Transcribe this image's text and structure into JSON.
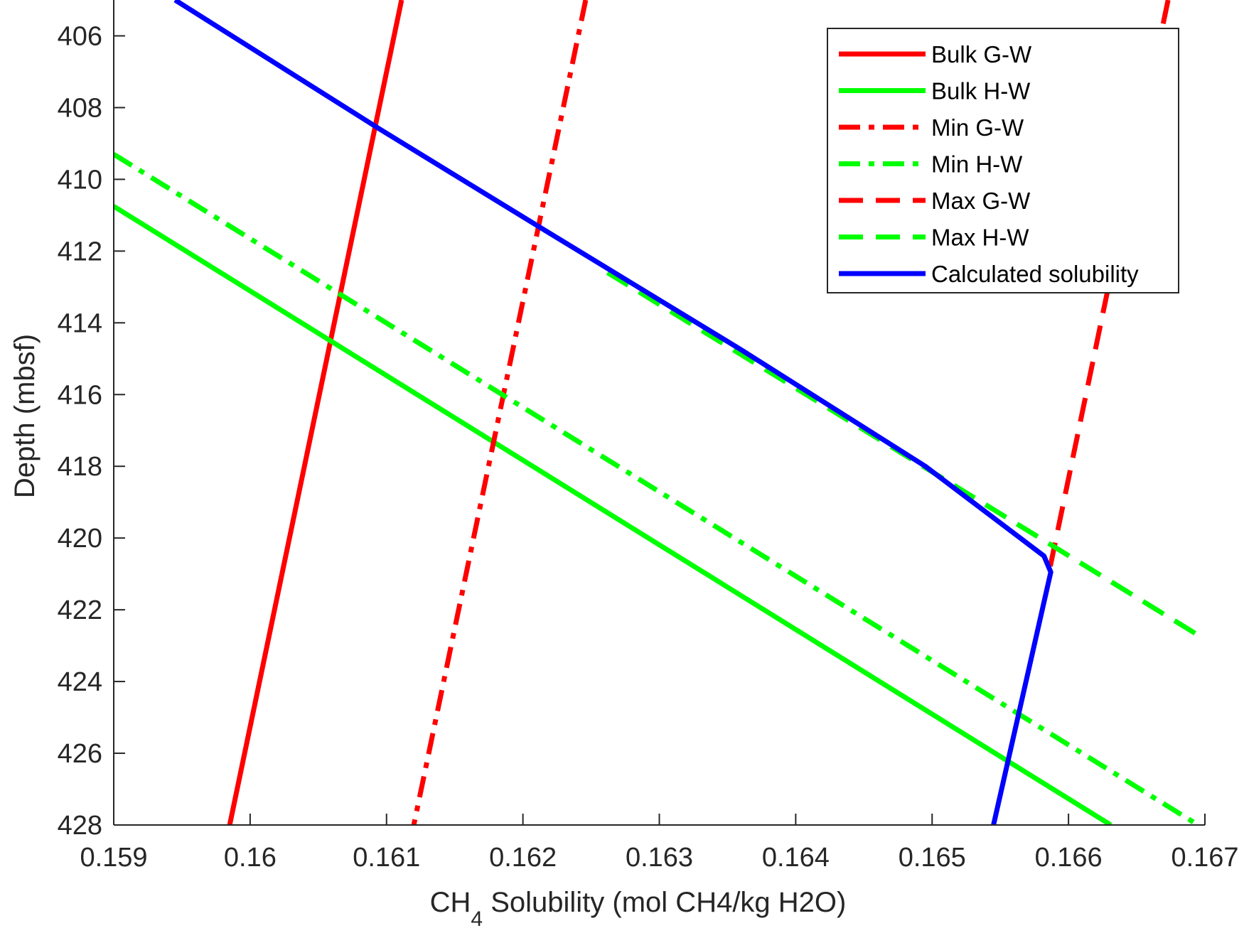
{
  "chart_data": {
    "type": "line",
    "title": "",
    "xlabel_main": "CH",
    "xlabel_sub": "4",
    "xlabel_rest": " Solubility (mol CH4/kg H2O)",
    "ylabel": "Depth (mbsf)",
    "xlim": [
      0.159,
      0.167
    ],
    "ylim": [
      405,
      428
    ],
    "y_reversed": true,
    "grid": false,
    "legend_position": "top-right",
    "x_ticks": [
      {
        "value": 0.159,
        "label": "0.159"
      },
      {
        "value": 0.16,
        "label": "0.16"
      },
      {
        "value": 0.161,
        "label": "0.161"
      },
      {
        "value": 0.162,
        "label": "0.162"
      },
      {
        "value": 0.163,
        "label": "0.163"
      },
      {
        "value": 0.164,
        "label": "0.164"
      },
      {
        "value": 0.165,
        "label": "0.165"
      },
      {
        "value": 0.166,
        "label": "0.166"
      },
      {
        "value": 0.167,
        "label": "0.167"
      }
    ],
    "y_ticks": [
      {
        "value": 406,
        "label": "406"
      },
      {
        "value": 408,
        "label": "408"
      },
      {
        "value": 410,
        "label": "410"
      },
      {
        "value": 412,
        "label": "412"
      },
      {
        "value": 414,
        "label": "414"
      },
      {
        "value": 416,
        "label": "416"
      },
      {
        "value": 418,
        "label": "418"
      },
      {
        "value": 420,
        "label": "420"
      },
      {
        "value": 422,
        "label": "422"
      },
      {
        "value": 424,
        "label": "424"
      },
      {
        "value": 426,
        "label": "426"
      },
      {
        "value": 428,
        "label": "428"
      }
    ],
    "series": [
      {
        "name": "Bulk G-W",
        "color": "#ff0000",
        "style": "solid",
        "x": [
          0.16111,
          0.15985
        ],
        "y": [
          405,
          428
        ]
      },
      {
        "name": "Bulk H-W",
        "color": "#00ff00",
        "style": "solid",
        "x": [
          0.159,
          0.16631
        ],
        "y": [
          410.75,
          428
        ]
      },
      {
        "name": "Min G-W",
        "color": "#ff0000",
        "style": "dashdot",
        "x": [
          0.16246,
          0.1612
        ],
        "y": [
          405,
          428
        ]
      },
      {
        "name": "Min H-W",
        "color": "#00ff00",
        "style": "dashdot",
        "x": [
          0.159,
          0.16695
        ],
        "y": [
          409.3,
          428
        ]
      },
      {
        "name": "Max G-W",
        "color": "#ff0000",
        "style": "dashed",
        "x": [
          0.16673,
          0.16586
        ],
        "y": [
          405,
          420.9
        ]
      },
      {
        "name": "Max H-W",
        "color": "#00ff00",
        "style": "dashed",
        "x": [
          0.16262,
          0.16699
        ],
        "y": [
          412.6,
          422.8
        ]
      },
      {
        "name": "Calculated solubility",
        "color": "#0000ff",
        "style": "solid",
        "x": [
          0.15945,
          0.16095,
          0.16213,
          0.1636,
          0.16495,
          0.16582,
          0.16587,
          0.16545
        ],
        "y": [
          405,
          408.6,
          411.35,
          414.75,
          418,
          420.5,
          420.95,
          428
        ]
      }
    ]
  }
}
